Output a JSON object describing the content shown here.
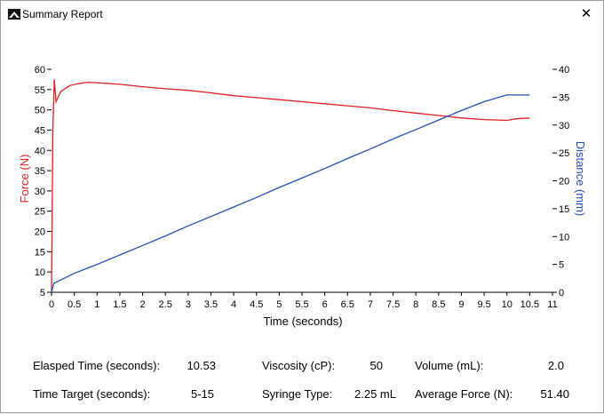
{
  "window": {
    "title": "Summary Report",
    "close_label": "✕",
    "icon": "app-logo-icon"
  },
  "chart_data": {
    "type": "line",
    "xlabel": "Time (seconds)",
    "ylabel_left": "Force (N)",
    "ylabel_right": "Distance (mm)",
    "xlim": [
      0,
      11
    ],
    "ylim_left": [
      5,
      60
    ],
    "ylim_right": [
      0,
      40
    ],
    "x_ticks": [
      "0",
      "0.5",
      "1",
      "1.5",
      "2",
      "2.5",
      "3",
      "3.5",
      "4",
      "4.5",
      "5",
      "5.5",
      "6",
      "6.5",
      "7",
      "7.5",
      "8",
      "8.5",
      "9",
      "9.5",
      "10",
      "10.5",
      "11"
    ],
    "y_left_ticks": [
      "5",
      "10",
      "15",
      "20",
      "25",
      "30",
      "35",
      "40",
      "45",
      "50",
      "55",
      "60"
    ],
    "y_right_ticks": [
      "0",
      "5",
      "10",
      "15",
      "20",
      "25",
      "30",
      "35",
      "40"
    ],
    "grid": false,
    "series": [
      {
        "color": "#e02020",
        "axis": "left",
        "x": [
          0,
          0.03,
          0.06,
          0.1,
          0.2,
          0.4,
          0.6,
          0.8,
          1.0,
          1.5,
          2.0,
          2.5,
          3.0,
          3.5,
          4.0,
          4.5,
          5.0,
          5.5,
          6.0,
          6.5,
          7.0,
          7.5,
          8.0,
          8.5,
          9.0,
          9.5,
          10.0,
          10.2,
          10.5
        ],
        "y": [
          5,
          45,
          57.5,
          52,
          54.5,
          56,
          56.5,
          56.8,
          56.7,
          56.3,
          55.7,
          55.2,
          54.8,
          54.2,
          53.5,
          53.0,
          52.5,
          52.0,
          51.5,
          51.0,
          50.5,
          49.8,
          49.2,
          48.6,
          48.0,
          47.6,
          47.4,
          47.8,
          48.0
        ]
      },
      {
        "color": "#2050c0",
        "axis": "right",
        "x": [
          0,
          0.05,
          0.1,
          0.5,
          1.0,
          1.5,
          2.0,
          2.5,
          3.0,
          3.5,
          4.0,
          4.5,
          5.0,
          5.5,
          6.0,
          6.5,
          7.0,
          7.5,
          8.0,
          8.5,
          9.0,
          9.5,
          10.0,
          10.5
        ],
        "y": [
          0,
          1.6,
          1.8,
          3.4,
          5.0,
          6.7,
          8.4,
          10.1,
          11.9,
          13.6,
          15.3,
          17.0,
          18.8,
          20.5,
          22.2,
          24.0,
          25.7,
          27.5,
          29.2,
          30.9,
          32.6,
          34.2,
          35.4,
          35.4
        ]
      }
    ]
  },
  "stats": [
    {
      "label": "Elasped Time (seconds):",
      "value": "10.53"
    },
    {
      "label": "Time Target (seconds):",
      "value": "5-15"
    },
    {
      "label": "Viscosity (cP):",
      "value": "50"
    },
    {
      "label": "Syringe Type:",
      "value": "2.25 mL"
    },
    {
      "label": "Volume (mL):",
      "value": "2.0"
    },
    {
      "label": "Average Force (N):",
      "value": "51.40"
    }
  ]
}
